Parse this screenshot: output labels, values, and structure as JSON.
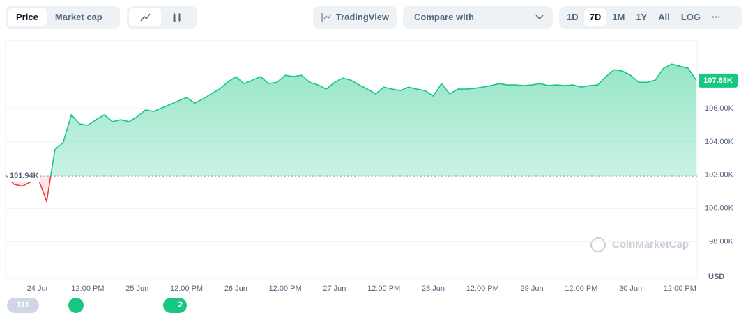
{
  "toolbar": {
    "metric": [
      "Price",
      "Market cap"
    ],
    "tradingview": "TradingView",
    "compare": "Compare with",
    "ranges": [
      "1D",
      "7D",
      "1M",
      "1Y",
      "All",
      "LOG",
      "···"
    ],
    "active_range": 1
  },
  "footer": {
    "events": "111",
    "news": "2"
  },
  "chart_data": {
    "type": "line",
    "watermark": "CoinMarketCap",
    "currency": "USD",
    "categories": [
      null,
      null,
      null,
      null,
      "24 Jun",
      null,
      null,
      null,
      null,
      null,
      "12:00 PM",
      null,
      null,
      null,
      null,
      null,
      "25 Jun",
      null,
      null,
      null,
      null,
      null,
      "12:00 PM",
      null,
      null,
      null,
      null,
      null,
      "26 Jun",
      null,
      null,
      null,
      null,
      null,
      "12:00 PM",
      null,
      null,
      null,
      null,
      null,
      "27 Jun",
      null,
      null,
      null,
      null,
      null,
      "12:00 PM",
      null,
      null,
      null,
      null,
      null,
      "28 Jun",
      null,
      null,
      null,
      null,
      null,
      "12:00 PM",
      null,
      null,
      null,
      null,
      null,
      "29 Jun",
      null,
      null,
      null,
      null,
      null,
      "12:00 PM",
      null,
      null,
      null,
      null,
      null,
      "30 Jun",
      null,
      null,
      null,
      null,
      null,
      "12:00 PM",
      null,
      null
    ],
    "series": [
      {
        "name": "Price",
        "color": "#16c784",
        "below_color": "#ea3943",
        "values": [
          102000,
          101460,
          101330,
          101580,
          101750,
          100420,
          103540,
          103960,
          105620,
          105080,
          105000,
          105330,
          105620,
          105210,
          105330,
          105210,
          105500,
          105920,
          105830,
          106040,
          106250,
          106460,
          106670,
          106330,
          106580,
          106880,
          107170,
          107580,
          107920,
          107500,
          107710,
          107920,
          107500,
          107580,
          108000,
          107920,
          108000,
          107580,
          107420,
          107170,
          107580,
          107830,
          107710,
          107420,
          107170,
          106880,
          107290,
          107170,
          107080,
          107290,
          107170,
          107080,
          106750,
          107500,
          106880,
          107170,
          107170,
          107210,
          107290,
          107380,
          107500,
          107420,
          107420,
          107380,
          107420,
          107500,
          107380,
          107420,
          107380,
          107420,
          107290,
          107380,
          107420,
          107920,
          108330,
          108250,
          108000,
          107580,
          107580,
          107710,
          108420,
          108670,
          108540,
          108420,
          107680
        ],
        "value_labels": [
          null,
          null,
          null,
          null,
          null,
          null,
          null,
          null,
          null,
          null,
          null,
          null,
          null,
          null,
          null,
          null,
          null,
          null,
          null,
          null,
          null,
          null,
          null,
          null,
          null,
          null,
          null,
          null,
          null,
          null,
          null,
          null,
          null,
          null,
          null,
          null,
          null,
          null,
          null,
          null,
          null,
          null,
          null,
          null,
          null,
          null,
          null,
          null,
          null,
          null,
          null,
          null,
          null,
          null,
          null,
          null,
          null,
          null,
          null,
          null,
          null,
          null,
          null,
          null,
          null,
          null,
          null,
          null,
          null,
          null,
          null,
          null,
          null,
          null,
          null,
          null,
          null,
          null,
          null,
          null,
          null,
          null,
          null,
          null,
          "107.68K"
        ]
      }
    ],
    "reference": {
      "value": 101940,
      "label": "101.94K"
    },
    "ylim": [
      95800,
      110100
    ],
    "yticks": [
      {
        "value": 98000,
        "label": "98.00K"
      },
      {
        "value": 100000,
        "label": "100.00K"
      },
      {
        "value": 102000,
        "label": "102.00K"
      },
      {
        "value": 104000,
        "label": "104.00K"
      },
      {
        "value": 106000,
        "label": "106.00K"
      }
    ],
    "grid": true
  }
}
